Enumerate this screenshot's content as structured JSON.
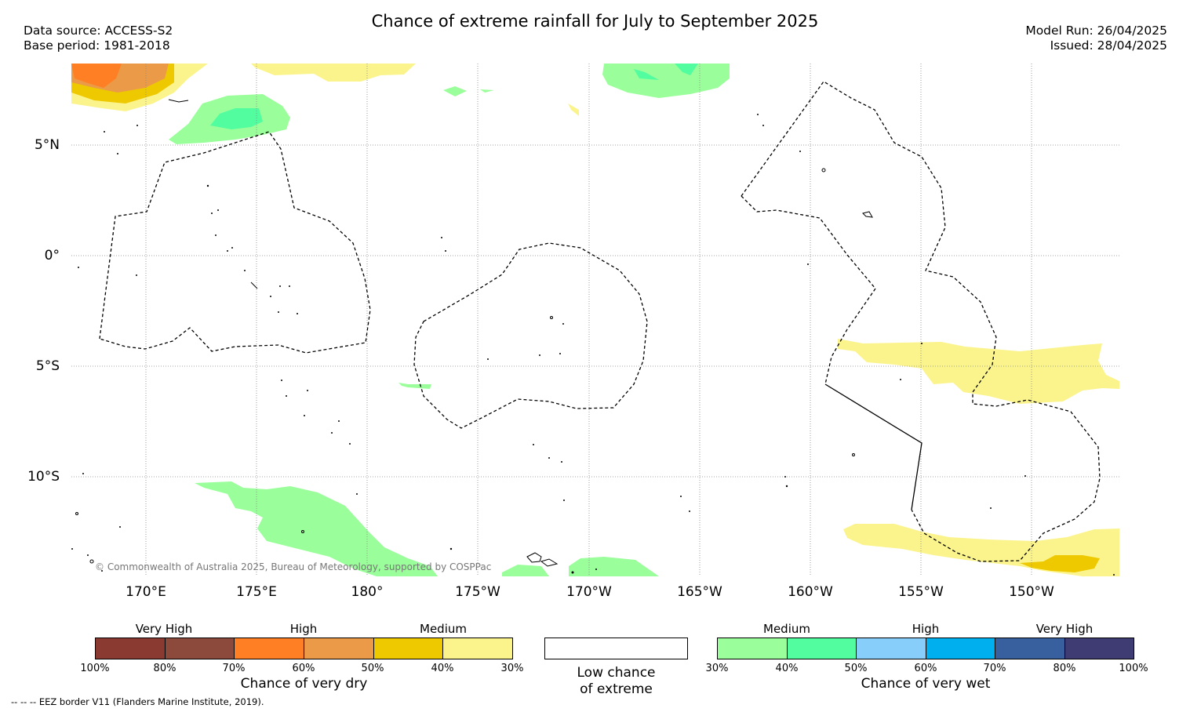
{
  "header": {
    "title": "Chance of extreme rainfall for July to September 2025",
    "data_source": "Data source: ACCESS-S2",
    "base_period": "Base period: 1981-2018",
    "model_run": "Model Run: 26/04/2025",
    "issued": "Issued: 28/04/2025"
  },
  "map": {
    "lon_ticks": [
      "170°E",
      "175°E",
      "180°",
      "175°W",
      "170°W",
      "165°W",
      "160°W",
      "155°W",
      "150°W"
    ],
    "lat_ticks": [
      "5°N",
      "0°",
      "5°S",
      "10°S"
    ],
    "copyright": "© Commonwealth of Australia 2025, Bureau of Meteorology, supported by COSPPac"
  },
  "legend": {
    "dry": {
      "title": "Chance of very dry",
      "categories": [
        "Very High",
        "High",
        "Medium"
      ],
      "ticks": [
        "100%",
        "80%",
        "70%",
        "60%",
        "50%",
        "40%",
        "30%"
      ],
      "colors": [
        "#8b3a32",
        "#8b4a3b",
        "#ff7f24",
        "#eb9b47",
        "#eec900",
        "#fbf48c"
      ]
    },
    "neutral": {
      "line1": "Low chance",
      "line2": "of extreme",
      "color": "#ffffff"
    },
    "wet": {
      "title": "Chance of very wet",
      "categories": [
        "Medium",
        "High",
        "Very High"
      ],
      "ticks": [
        "30%",
        "40%",
        "50%",
        "60%",
        "70%",
        "80%",
        "100%"
      ],
      "colors": [
        "#9aff9a",
        "#52fda0",
        "#87cefa",
        "#00b0ee",
        "#38609f",
        "#3f3b73"
      ]
    },
    "eez_note": "--  --  -- EEZ border V11 (Flanders Marine Institute, 2019)."
  }
}
